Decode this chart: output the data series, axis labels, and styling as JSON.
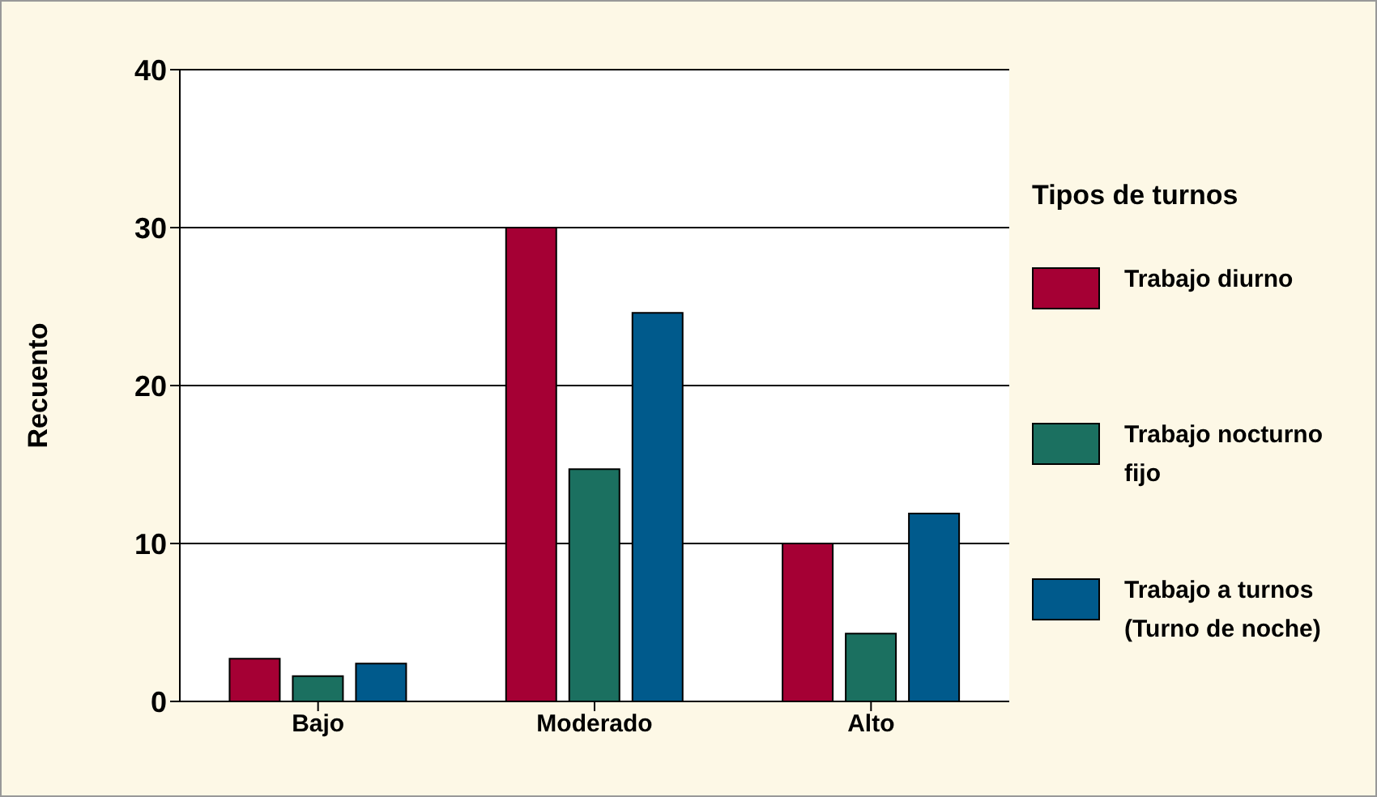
{
  "chart_data": {
    "type": "bar",
    "ylabel": "Recuento",
    "legend_title": "Tipos de turnos",
    "categories": [
      "Bajo",
      "Moderado",
      "Alto"
    ],
    "series": [
      {
        "name": "Trabajo diurno",
        "color": "#a50034",
        "values": [
          2.7,
          30,
          10
        ]
      },
      {
        "name": "Trabajo nocturno fijo",
        "color": "#1b7060",
        "values": [
          1.6,
          14.7,
          4.3
        ]
      },
      {
        "name": "Trabajo a turnos (Turno de noche)",
        "color": "#005a8c",
        "values": [
          2.4,
          24.6,
          11.9
        ]
      }
    ],
    "ylim": [
      0,
      40
    ],
    "yticks": [
      0,
      10,
      20,
      30,
      40
    ],
    "grid": "y",
    "legend": "right"
  }
}
